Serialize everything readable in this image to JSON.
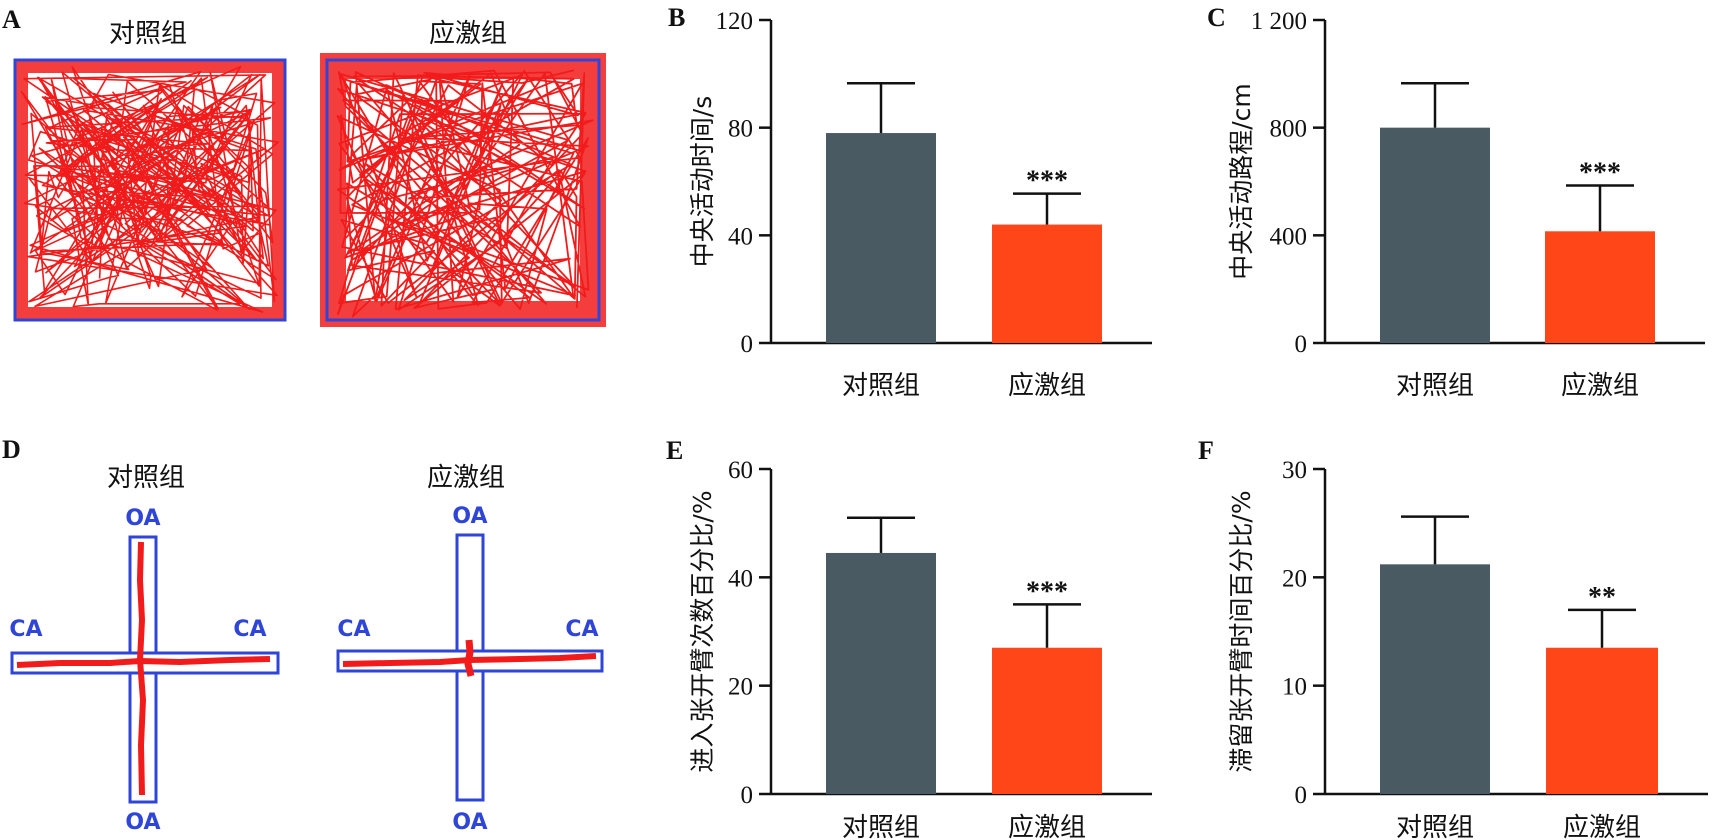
{
  "panels": {
    "A": {
      "letter": "A",
      "titles": [
        "对照组",
        "应激组"
      ]
    },
    "D": {
      "letter": "D",
      "titles": [
        "对照组",
        "应激组"
      ],
      "arm_labels": {
        "open": "OA",
        "closed": "CA"
      }
    }
  },
  "colors": {
    "control_bar": "#4a5a63",
    "stress_bar": "#ff4618",
    "track": "#f21b1b",
    "arena_border": "#2f45d8"
  },
  "chart_data": [
    {
      "id": "B",
      "letter": "B",
      "type": "bar",
      "categories": [
        "对照组",
        "应激组"
      ],
      "values": [
        78,
        44
      ],
      "errors": [
        18.5,
        11.5
      ],
      "significance": [
        "",
        "***"
      ],
      "ylabel": "中央活动时间/s",
      "ylim": [
        0,
        120
      ],
      "yticks": [
        0,
        40,
        80,
        120
      ],
      "ytick_labels": [
        "0",
        "40",
        "80",
        "120"
      ]
    },
    {
      "id": "C",
      "letter": "C",
      "type": "bar",
      "categories": [
        "对照组",
        "应激组"
      ],
      "values": [
        800,
        415
      ],
      "errors": [
        165,
        170
      ],
      "significance": [
        "",
        "***"
      ],
      "ylabel": "中央活动路程/cm",
      "ylim": [
        0,
        1200
      ],
      "yticks": [
        0,
        400,
        800,
        1200
      ],
      "ytick_labels": [
        "0",
        "400",
        "800",
        "1 200"
      ]
    },
    {
      "id": "E",
      "letter": "E",
      "type": "bar",
      "categories": [
        "对照组",
        "应激组"
      ],
      "values": [
        44.5,
        27
      ],
      "errors": [
        6.5,
        8
      ],
      "significance": [
        "",
        "***"
      ],
      "ylabel": "进入张开臂次数百分比/%",
      "ylim": [
        0,
        60
      ],
      "yticks": [
        0,
        20,
        40,
        60
      ],
      "ytick_labels": [
        "0",
        "20",
        "40",
        "60"
      ]
    },
    {
      "id": "F",
      "letter": "F",
      "type": "bar",
      "categories": [
        "对照组",
        "应激组"
      ],
      "values": [
        21.2,
        13.5
      ],
      "errors": [
        4.4,
        3.5
      ],
      "significance": [
        "",
        "**"
      ],
      "ylabel": "滞留张开臂时间百分比/%",
      "ylim": [
        0,
        30
      ],
      "yticks": [
        0,
        10,
        20,
        30
      ],
      "ytick_labels": [
        "0",
        "10",
        "20",
        "30"
      ]
    }
  ]
}
